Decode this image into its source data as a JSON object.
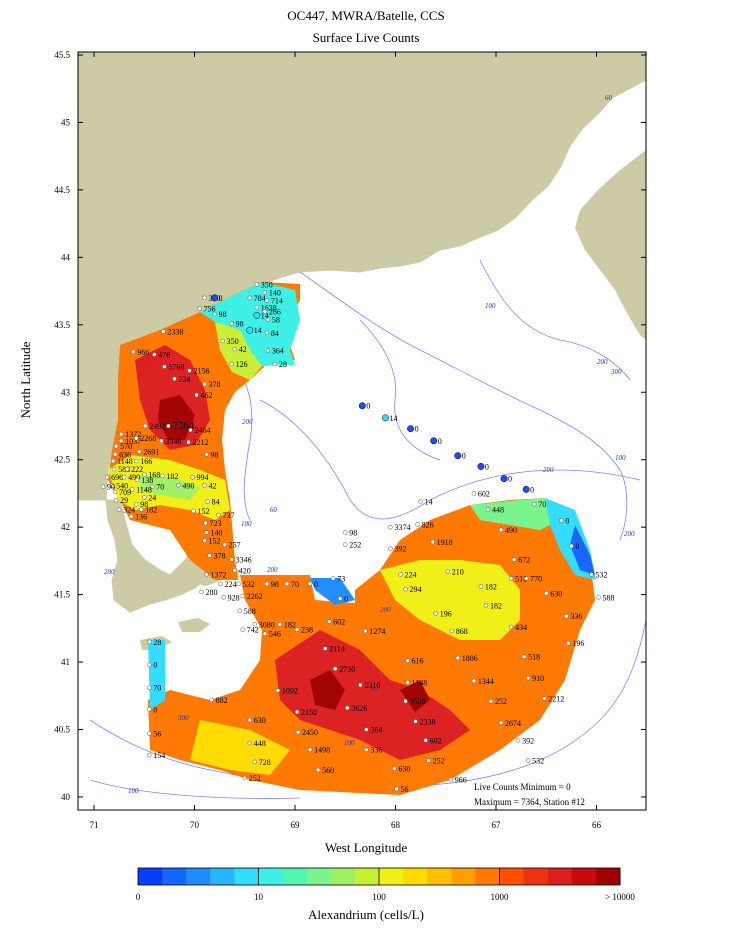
{
  "header": {
    "title": "OC447, MWRA/Batelle, CCS",
    "subtitle": "Surface Live Counts"
  },
  "axes": {
    "ylabel": "North Latitude",
    "xlabel": "West Longitude",
    "yticks": [
      "45.5",
      "45",
      "44.5",
      "44",
      "43.5",
      "43",
      "42.5",
      "42",
      "41.5",
      "41",
      "40.5",
      "40"
    ],
    "xticks": [
      "71",
      "70",
      "69",
      "68",
      "67",
      "66"
    ]
  },
  "colorbar": {
    "label": "Alexandrium (cells/L)",
    "ticks": [
      "0",
      "10",
      "100",
      "1000",
      "> 10000"
    ],
    "colors": [
      "#0a3cff",
      "#1466ff",
      "#1e8cff",
      "#28b4ff",
      "#32dcff",
      "#3cf0e6",
      "#50f5b4",
      "#78f58c",
      "#a0f064",
      "#c8f032",
      "#f0f014",
      "#ffdc00",
      "#ffbe00",
      "#ffa000",
      "#ff7800",
      "#ff5000",
      "#f03214",
      "#dc1e1e",
      "#c80a0a",
      "#a00000"
    ]
  },
  "notes": {
    "minimum": "Live Counts Minimum = 0",
    "maximum": "Maximum = 7364, Station #12"
  },
  "contours": [
    "60",
    "100",
    "200",
    "300",
    "200",
    "60",
    "100",
    "200",
    "200",
    "200",
    "100",
    "200",
    "300",
    "60",
    "100",
    "100",
    "200"
  ],
  "stations": [
    {
      "lon": -69.38,
      "lat": 43.8,
      "value": "350"
    },
    {
      "lon": -69.3,
      "lat": 43.74,
      "value": "140"
    },
    {
      "lon": -69.45,
      "lat": 43.7,
      "value": "784"
    },
    {
      "lon": -69.28,
      "lat": 43.68,
      "value": "714"
    },
    {
      "lon": -69.38,
      "lat": 43.63,
      "value": "1638"
    },
    {
      "lon": -69.3,
      "lat": 43.6,
      "value": "266"
    },
    {
      "lon": -69.27,
      "lat": 43.54,
      "value": "58"
    },
    {
      "lon": -69.38,
      "lat": 43.57,
      "value": "14"
    },
    {
      "lon": -69.9,
      "lat": 43.7,
      "value": "350"
    },
    {
      "lon": -69.8,
      "lat": 43.7,
      "value": "0"
    },
    {
      "lon": -69.95,
      "lat": 43.62,
      "value": "756"
    },
    {
      "lon": -69.8,
      "lat": 43.58,
      "value": "98"
    },
    {
      "lon": -69.63,
      "lat": 43.51,
      "value": "98"
    },
    {
      "lon": -69.45,
      "lat": 43.46,
      "value": "14"
    },
    {
      "lon": -69.28,
      "lat": 43.44,
      "value": "84"
    },
    {
      "lon": -69.72,
      "lat": 43.38,
      "value": "350"
    },
    {
      "lon": -69.6,
      "lat": 43.32,
      "value": "42"
    },
    {
      "lon": -69.27,
      "lat": 43.31,
      "value": "364"
    },
    {
      "lon": -69.63,
      "lat": 43.21,
      "value": "126"
    },
    {
      "lon": -69.2,
      "lat": 43.21,
      "value": "28"
    },
    {
      "lon": -70.31,
      "lat": 43.45,
      "value": "2338"
    },
    {
      "lon": -70.61,
      "lat": 43.3,
      "value": "966"
    },
    {
      "lon": -70.4,
      "lat": 43.28,
      "value": "476"
    },
    {
      "lon": -70.3,
      "lat": 43.19,
      "value": "5768"
    },
    {
      "lon": -70.05,
      "lat": 43.16,
      "value": "2156"
    },
    {
      "lon": -70.2,
      "lat": 43.1,
      "value": "224"
    },
    {
      "lon": -69.9,
      "lat": 43.06,
      "value": "378"
    },
    {
      "lon": -69.98,
      "lat": 42.98,
      "value": "462"
    },
    {
      "lon": -70.49,
      "lat": 42.75,
      "value": "2492"
    },
    {
      "lon": -70.26,
      "lat": 42.75,
      "value": "7364"
    },
    {
      "lon": -70.04,
      "lat": 42.72,
      "value": "2464"
    },
    {
      "lon": -70.73,
      "lat": 42.69,
      "value": "1372"
    },
    {
      "lon": -70.73,
      "lat": 42.64,
      "value": "1037"
    },
    {
      "lon": -70.58,
      "lat": 42.66,
      "value": "2268"
    },
    {
      "lon": -70.33,
      "lat": 42.64,
      "value": "3346"
    },
    {
      "lon": -70.06,
      "lat": 42.63,
      "value": "2212"
    },
    {
      "lon": -70.78,
      "lat": 42.6,
      "value": "570"
    },
    {
      "lon": -70.55,
      "lat": 42.56,
      "value": "2691"
    },
    {
      "lon": -70.79,
      "lat": 42.54,
      "value": "636"
    },
    {
      "lon": -70.81,
      "lat": 42.49,
      "value": "1148"
    },
    {
      "lon": -70.58,
      "lat": 42.49,
      "value": "166"
    },
    {
      "lon": -69.88,
      "lat": 42.54,
      "value": "98"
    },
    {
      "lon": -70.8,
      "lat": 42.43,
      "value": "588"
    },
    {
      "lon": -70.67,
      "lat": 42.43,
      "value": "222"
    },
    {
      "lon": -70.5,
      "lat": 42.39,
      "value": "168"
    },
    {
      "lon": -70.32,
      "lat": 42.38,
      "value": "182"
    },
    {
      "lon": -70.02,
      "lat": 42.37,
      "value": "994"
    },
    {
      "lon": -70.87,
      "lat": 42.37,
      "value": "696"
    },
    {
      "lon": -70.7,
      "lat": 42.37,
      "value": "490"
    },
    {
      "lon": -70.57,
      "lat": 42.35,
      "value": "138"
    },
    {
      "lon": -70.82,
      "lat": 42.31,
      "value": "540"
    },
    {
      "lon": -70.42,
      "lat": 42.3,
      "value": "70"
    },
    {
      "lon": -70.16,
      "lat": 42.31,
      "value": "490"
    },
    {
      "lon": -69.9,
      "lat": 42.31,
      "value": "42"
    },
    {
      "lon": -70.91,
      "lat": 42.3,
      "value": "90"
    },
    {
      "lon": -70.62,
      "lat": 42.28,
      "value": "1148"
    },
    {
      "lon": -70.79,
      "lat": 42.26,
      "value": "709"
    },
    {
      "lon": -70.5,
      "lat": 42.22,
      "value": "24"
    },
    {
      "lon": -70.78,
      "lat": 42.2,
      "value": "29"
    },
    {
      "lon": -70.58,
      "lat": 42.17,
      "value": "98"
    },
    {
      "lon": -69.87,
      "lat": 42.19,
      "value": "84"
    },
    {
      "lon": -70.75,
      "lat": 42.13,
      "value": "324"
    },
    {
      "lon": -70.53,
      "lat": 42.13,
      "value": "182"
    },
    {
      "lon": -70.01,
      "lat": 42.12,
      "value": "152"
    },
    {
      "lon": -69.76,
      "lat": 42.09,
      "value": "737"
    },
    {
      "lon": -70.63,
      "lat": 42.08,
      "value": "136"
    },
    {
      "lon": -69.89,
      "lat": 42.03,
      "value": "723"
    },
    {
      "lon": -69.88,
      "lat": 41.96,
      "value": "140"
    },
    {
      "lon": -69.9,
      "lat": 41.9,
      "value": "152"
    },
    {
      "lon": -69.7,
      "lat": 41.87,
      "value": "257"
    },
    {
      "lon": -69.85,
      "lat": 41.79,
      "value": "378"
    },
    {
      "lon": -69.63,
      "lat": 41.76,
      "value": "3346"
    },
    {
      "lon": -69.6,
      "lat": 41.68,
      "value": "420"
    },
    {
      "lon": -69.88,
      "lat": 41.65,
      "value": "1372"
    },
    {
      "lon": -69.74,
      "lat": 41.58,
      "value": "224"
    },
    {
      "lon": -69.56,
      "lat": 41.58,
      "value": "532"
    },
    {
      "lon": -69.28,
      "lat": 41.58,
      "value": "98"
    },
    {
      "lon": -69.08,
      "lat": 41.58,
      "value": "70"
    },
    {
      "lon": -68.85,
      "lat": 41.58,
      "value": "0"
    },
    {
      "lon": -69.93,
      "lat": 41.52,
      "value": "280"
    },
    {
      "lon": -69.71,
      "lat": 41.48,
      "value": "928"
    },
    {
      "lon": -69.52,
      "lat": 41.49,
      "value": "2262"
    },
    {
      "lon": -69.55,
      "lat": 41.38,
      "value": "588"
    },
    {
      "lon": -68.62,
      "lat": 41.62,
      "value": "73"
    },
    {
      "lon": -68.55,
      "lat": 41.47,
      "value": "0"
    },
    {
      "lon": -69.4,
      "lat": 41.28,
      "value": "3080"
    },
    {
      "lon": -69.15,
      "lat": 41.28,
      "value": "182"
    },
    {
      "lon": -69.52,
      "lat": 41.24,
      "value": "742"
    },
    {
      "lon": -69.3,
      "lat": 41.21,
      "value": "546"
    },
    {
      "lon": -68.98,
      "lat": 41.24,
      "value": "238"
    },
    {
      "lon": -68.66,
      "lat": 41.3,
      "value": "602"
    },
    {
      "lon": -70.45,
      "lat": 41.15,
      "value": "28"
    },
    {
      "lon": -70.45,
      "lat": 40.98,
      "value": "0"
    },
    {
      "lon": -70.45,
      "lat": 40.81,
      "value": "70"
    },
    {
      "lon": -70.45,
      "lat": 40.65,
      "value": "0"
    },
    {
      "lon": -70.45,
      "lat": 40.47,
      "value": "56"
    },
    {
      "lon": -70.45,
      "lat": 40.31,
      "value": "154"
    },
    {
      "lon": -69.83,
      "lat": 40.72,
      "value": "882"
    },
    {
      "lon": -69.45,
      "lat": 40.57,
      "value": "630"
    },
    {
      "lon": -69.45,
      "lat": 40.4,
      "value": "448"
    },
    {
      "lon": -69.4,
      "lat": 40.26,
      "value": "728"
    },
    {
      "lon": -69.5,
      "lat": 40.14,
      "value": "252"
    },
    {
      "lon": -69.17,
      "lat": 40.79,
      "value": "1092"
    },
    {
      "lon": -68.98,
      "lat": 40.63,
      "value": "2150"
    },
    {
      "lon": -68.97,
      "lat": 40.48,
      "value": "2450"
    },
    {
      "lon": -68.85,
      "lat": 40.35,
      "value": "1498"
    },
    {
      "lon": -68.77,
      "lat": 40.2,
      "value": "560"
    },
    {
      "lon": -68.7,
      "lat": 41.1,
      "value": "2114"
    },
    {
      "lon": -68.6,
      "lat": 40.95,
      "value": "2730"
    },
    {
      "lon": -68.35,
      "lat": 40.83,
      "value": "2310"
    },
    {
      "lon": -68.48,
      "lat": 40.66,
      "value": "3626"
    },
    {
      "lon": -68.29,
      "lat": 40.5,
      "value": "364"
    },
    {
      "lon": -68.29,
      "lat": 40.35,
      "value": "336"
    },
    {
      "lon": -68.01,
      "lat": 40.21,
      "value": "630"
    },
    {
      "lon": -67.99,
      "lat": 40.06,
      "value": "56"
    },
    {
      "lon": -68.3,
      "lat": 41.23,
      "value": "1274"
    },
    {
      "lon": -67.88,
      "lat": 41.01,
      "value": "616"
    },
    {
      "lon": -67.88,
      "lat": 40.85,
      "value": "1148"
    },
    {
      "lon": -67.9,
      "lat": 40.71,
      "value": "3528"
    },
    {
      "lon": -67.8,
      "lat": 40.56,
      "value": "2338"
    },
    {
      "lon": -67.7,
      "lat": 40.42,
      "value": "602"
    },
    {
      "lon": -67.67,
      "lat": 40.27,
      "value": "252"
    },
    {
      "lon": -67.45,
      "lat": 40.13,
      "value": "966"
    },
    {
      "lon": -67.44,
      "lat": 41.23,
      "value": "868"
    },
    {
      "lon": -67.38,
      "lat": 41.03,
      "value": "1806"
    },
    {
      "lon": -67.22,
      "lat": 40.86,
      "value": "1344"
    },
    {
      "lon": -67.05,
      "lat": 40.71,
      "value": "252"
    },
    {
      "lon": -66.95,
      "lat": 40.55,
      "value": "2674"
    },
    {
      "lon": -66.78,
      "lat": 40.42,
      "value": "392"
    },
    {
      "lon": -66.68,
      "lat": 40.27,
      "value": "532"
    },
    {
      "lon": -67.6,
      "lat": 41.36,
      "value": "196"
    },
    {
      "lon": -66.85,
      "lat": 41.26,
      "value": "434"
    },
    {
      "lon": -66.72,
      "lat": 41.04,
      "value": "518"
    },
    {
      "lon": -66.68,
      "lat": 40.88,
      "value": "910"
    },
    {
      "lon": -66.52,
      "lat": 40.73,
      "value": "2212"
    },
    {
      "lon": -67.1,
      "lat": 41.42,
      "value": "182"
    },
    {
      "lon": -66.3,
      "lat": 41.34,
      "value": "336"
    },
    {
      "lon": -66.28,
      "lat": 41.14,
      "value": "196"
    },
    {
      "lon": -67.15,
      "lat": 41.56,
      "value": "182"
    },
    {
      "lon": -66.5,
      "lat": 41.51,
      "value": "630"
    },
    {
      "lon": -65.98,
      "lat": 41.48,
      "value": "588"
    },
    {
      "lon": -67.9,
      "lat": 41.54,
      "value": "294"
    },
    {
      "lon": -67.63,
      "lat": 41.89,
      "value": "1918"
    },
    {
      "lon": -67.48,
      "lat": 41.67,
      "value": "210"
    },
    {
      "lon": -66.85,
      "lat": 41.62,
      "value": "518"
    },
    {
      "lon": -66.7,
      "lat": 41.62,
      "value": "770"
    },
    {
      "lon": -67.95,
      "lat": 41.65,
      "value": "224"
    },
    {
      "lon": -68.05,
      "lat": 41.84,
      "value": "392"
    },
    {
      "lon": -67.78,
      "lat": 42.02,
      "value": "826"
    },
    {
      "lon": -66.82,
      "lat": 41.76,
      "value": "672"
    },
    {
      "lon": -66.95,
      "lat": 41.98,
      "value": "490"
    },
    {
      "lon": -67.08,
      "lat": 42.13,
      "value": "448"
    },
    {
      "lon": -67.22,
      "lat": 42.25,
      "value": "602"
    },
    {
      "lon": -68.05,
      "lat": 42.0,
      "value": "3374"
    },
    {
      "lon": -68.5,
      "lat": 41.96,
      "value": "98"
    },
    {
      "lon": -68.5,
      "lat": 41.87,
      "value": "252"
    },
    {
      "lon": -67.75,
      "lat": 42.19,
      "value": "14"
    },
    {
      "lon": -66.62,
      "lat": 42.17,
      "value": "70"
    },
    {
      "lon": -66.35,
      "lat": 42.05,
      "value": "0"
    },
    {
      "lon": -66.25,
      "lat": 41.86,
      "value": "0"
    },
    {
      "lon": -66.05,
      "lat": 41.65,
      "value": "532"
    },
    {
      "lon": -68.33,
      "lat": 42.9,
      "value": "0"
    },
    {
      "lon": -68.1,
      "lat": 42.81,
      "value": "14"
    },
    {
      "lon": -67.85,
      "lat": 42.73,
      "value": "0"
    },
    {
      "lon": -67.62,
      "lat": 42.64,
      "value": "0"
    },
    {
      "lon": -67.38,
      "lat": 42.53,
      "value": "0"
    },
    {
      "lon": -67.15,
      "lat": 42.45,
      "value": "0"
    },
    {
      "lon": -66.92,
      "lat": 42.36,
      "value": "0"
    },
    {
      "lon": -66.7,
      "lat": 42.28,
      "value": "0"
    }
  ]
}
